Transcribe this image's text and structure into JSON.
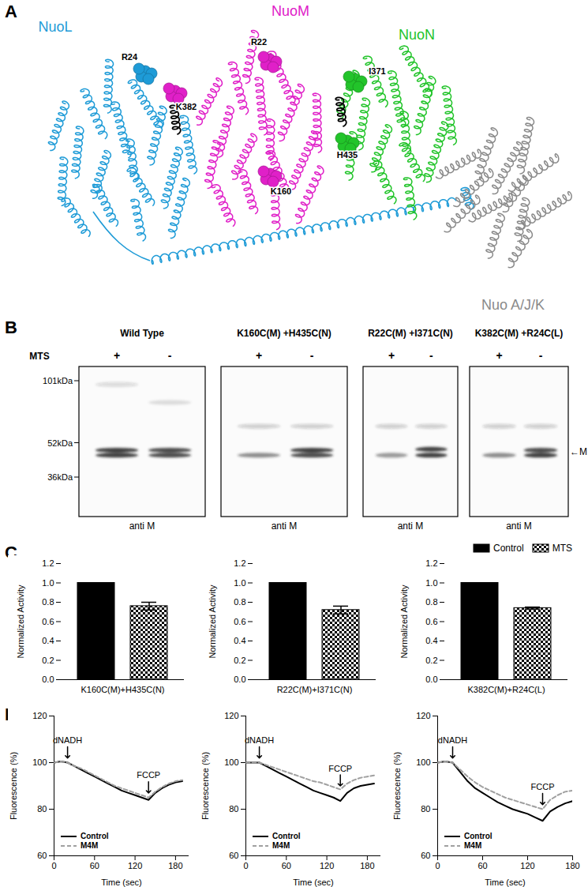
{
  "panels": {
    "A": {
      "label": "A",
      "subunits": [
        {
          "name": "NuoL",
          "color": "#1e9bd7"
        },
        {
          "name": "NuoM",
          "color": "#e020c8"
        },
        {
          "name": "NuoN",
          "color": "#22c42a"
        },
        {
          "name": "Nuo A/J/K",
          "color": "#8a8a8a"
        }
      ],
      "residues": [
        {
          "label": "R24",
          "subunit": "NuoL"
        },
        {
          "label": "K382",
          "subunit": "NuoM"
        },
        {
          "label": "R22",
          "subunit": "NuoM"
        },
        {
          "label": "I371",
          "subunit": "NuoN"
        },
        {
          "label": "H435",
          "subunit": "NuoN"
        },
        {
          "label": "K160",
          "subunit": "NuoM"
        }
      ]
    },
    "B": {
      "label": "B",
      "row_label": "MTS",
      "lanes": [
        "+",
        "-"
      ],
      "antibody": "anti M",
      "markers": [
        {
          "label": "101kDa",
          "kda": 101
        },
        {
          "label": "52kDa",
          "kda": 52
        },
        {
          "label": "36kDa",
          "kda": 36
        }
      ],
      "band_label": {
        "text": "←M",
        "kda": 47
      },
      "blots": [
        {
          "title": "Wild Type",
          "bands": [
            {
              "lane": "+",
              "kda": 48,
              "intensity": 0.85
            },
            {
              "lane": "+",
              "kda": 45.5,
              "intensity": 0.85
            },
            {
              "lane": "+",
              "kda": 97,
              "intensity": 0.15
            },
            {
              "lane": "-",
              "kda": 48,
              "intensity": 0.8
            },
            {
              "lane": "-",
              "kda": 45.5,
              "intensity": 0.8
            },
            {
              "lane": "-",
              "kda": 80,
              "intensity": 0.12
            }
          ]
        },
        {
          "title": "K160C(M) +H435C(N)",
          "bands": [
            {
              "lane": "+",
              "kda": 45.5,
              "intensity": 0.5
            },
            {
              "lane": "+",
              "kda": 62,
              "intensity": 0.2
            },
            {
              "lane": "-",
              "kda": 48,
              "intensity": 0.85
            },
            {
              "lane": "-",
              "kda": 45.5,
              "intensity": 0.8
            },
            {
              "lane": "-",
              "kda": 62,
              "intensity": 0.2
            }
          ]
        },
        {
          "title": "R22C(M) +I371C(N)",
          "bands": [
            {
              "lane": "+",
              "kda": 45.5,
              "intensity": 0.45
            },
            {
              "lane": "+",
              "kda": 62,
              "intensity": 0.2
            },
            {
              "lane": "-",
              "kda": 48.5,
              "intensity": 0.85
            },
            {
              "lane": "-",
              "kda": 45.5,
              "intensity": 0.85
            },
            {
              "lane": "-",
              "kda": 62,
              "intensity": 0.2
            }
          ]
        },
        {
          "title": "K382C(M) +R24C(L)",
          "bands": [
            {
              "lane": "+",
              "kda": 45.5,
              "intensity": 0.5
            },
            {
              "lane": "+",
              "kda": 62,
              "intensity": 0.2
            },
            {
              "lane": "-",
              "kda": 48,
              "intensity": 0.8
            },
            {
              "lane": "-",
              "kda": 45.5,
              "intensity": 0.85
            },
            {
              "lane": "-",
              "kda": 62,
              "intensity": 0.2
            }
          ]
        }
      ]
    },
    "C": {
      "label": "C"
    },
    "D": {
      "label": "D"
    }
  },
  "chart_data": [
    {
      "type": "bar",
      "y_label": "Normalized Activity",
      "categories": [
        "K160C(M)+H435C(N)"
      ],
      "series": [
        {
          "name": "Control",
          "color": "#000000",
          "values": [
            1.0
          ]
        },
        {
          "name": "MTS",
          "color": "#000000",
          "values": [
            0.76
          ],
          "errors": [
            0.04
          ]
        }
      ],
      "ylim": [
        0,
        1.2
      ],
      "yticks": [
        {
          "value": 0,
          "label": "0.0"
        },
        {
          "value": 0.2,
          "label": "0.2"
        },
        {
          "value": 0.4,
          "label": "0.4"
        },
        {
          "value": 0.6,
          "label": "0.6"
        },
        {
          "value": 0.8,
          "label": "0.8"
        },
        {
          "value": 1,
          "label": "1.0"
        },
        {
          "value": 1.2,
          "label": "1.2"
        }
      ]
    },
    {
      "type": "bar",
      "y_label": "Normalized Activity",
      "categories": [
        "R22C(M)+I371C(N)"
      ],
      "series": [
        {
          "name": "Control",
          "color": "#000000",
          "values": [
            1.0
          ]
        },
        {
          "name": "MTS",
          "color": "#000000",
          "values": [
            0.72
          ],
          "errors": [
            0.04
          ]
        }
      ],
      "ylim": [
        0,
        1.2
      ],
      "yticks": [
        {
          "value": 0,
          "label": "0.0"
        },
        {
          "value": 0.2,
          "label": "0.2"
        },
        {
          "value": 0.4,
          "label": "0.4"
        },
        {
          "value": 0.6,
          "label": "0.6"
        },
        {
          "value": 0.8,
          "label": "0.8"
        },
        {
          "value": 1,
          "label": "1.0"
        },
        {
          "value": 1.2,
          "label": "1.2"
        }
      ]
    },
    {
      "type": "bar",
      "y_label": "Normalized Activity",
      "categories": [
        "K382C(M)+R24C(L)"
      ],
      "series": [
        {
          "name": "Control",
          "color": "#000000",
          "values": [
            1.0
          ]
        },
        {
          "name": "MTS",
          "color": "#000000",
          "values": [
            0.74
          ],
          "errors": [
            0.01
          ]
        }
      ],
      "ylim": [
        0,
        1.2
      ],
      "yticks": [
        {
          "value": 0,
          "label": "0.0"
        },
        {
          "value": 0.2,
          "label": "0.2"
        },
        {
          "value": 0.4,
          "label": "0.4"
        },
        {
          "value": 0.6,
          "label": "0.6"
        },
        {
          "value": 0.8,
          "label": "0.8"
        },
        {
          "value": 1,
          "label": "1.0"
        },
        {
          "value": 1.2,
          "label": "1.2"
        }
      ],
      "legend": "top-right"
    },
    {
      "type": "line",
      "x_label": "Time (sec)",
      "y_label": "Fluorescence (%)",
      "x": [
        0,
        10,
        20,
        30,
        40,
        50,
        60,
        70,
        80,
        90,
        100,
        110,
        120,
        130,
        140,
        150,
        160,
        170,
        180,
        190
      ],
      "series": [
        {
          "name": "Control",
          "color": "#000000",
          "line_style": "solid",
          "values": [
            100,
            100.5,
            100,
            98.5,
            97,
            95.5,
            94,
            92.5,
            91,
            89.5,
            88,
            87,
            86,
            85,
            84,
            87,
            89,
            90.5,
            91.5,
            92
          ]
        },
        {
          "name": "M4M",
          "color": "#a0a0a0",
          "line_style": "dashed",
          "values": [
            100,
            100.5,
            100,
            98.5,
            97.5,
            96,
            94.5,
            93,
            91.5,
            90,
            89,
            88,
            87,
            86,
            85,
            87.5,
            89.5,
            91,
            92,
            92.5
          ]
        }
      ],
      "xlim": [
        0,
        200
      ],
      "xticks": [
        0,
        60,
        120,
        180
      ],
      "ylim": [
        60,
        120
      ],
      "yticks": [
        60,
        80,
        100,
        120
      ],
      "legend": "bottom-left",
      "annotations": [
        {
          "text": "dNADH",
          "x": 20,
          "y": 102
        },
        {
          "text": "FCCP",
          "x": 140,
          "y": 87
        }
      ]
    },
    {
      "type": "line",
      "x_label": "Time (sec)",
      "y_label": "Fluorescence (%)",
      "x": [
        0,
        10,
        20,
        30,
        40,
        50,
        60,
        70,
        80,
        90,
        100,
        110,
        120,
        130,
        140,
        150,
        160,
        170,
        180,
        190
      ],
      "series": [
        {
          "name": "Control",
          "color": "#000000",
          "line_style": "solid",
          "values": [
            100,
            100,
            100,
            98.5,
            97,
            95.5,
            94,
            92.5,
            91,
            89.5,
            88,
            87,
            86,
            85,
            83.5,
            87,
            89,
            90,
            90.5,
            91
          ]
        },
        {
          "name": "M4M",
          "color": "#a0a0a0",
          "line_style": "dashed",
          "values": [
            100,
            100,
            100,
            99,
            98,
            97,
            96,
            95,
            94,
            93,
            92,
            91.5,
            90.5,
            89.5,
            88.5,
            91,
            92.5,
            93.5,
            94,
            94.5
          ]
        }
      ],
      "xlim": [
        0,
        200
      ],
      "xticks": [
        0,
        60,
        120,
        180
      ],
      "ylim": [
        60,
        120
      ],
      "yticks": [
        60,
        80,
        100,
        120
      ],
      "legend": "bottom-left",
      "annotations": [
        {
          "text": "dNADH",
          "x": 20,
          "y": 102
        },
        {
          "text": "FCCP",
          "x": 140,
          "y": 90
        }
      ]
    },
    {
      "type": "line",
      "x_label": "Time (sec)",
      "y_label": "Fluorescence (%)",
      "x": [
        0,
        10,
        20,
        30,
        40,
        50,
        60,
        70,
        80,
        90,
        100,
        110,
        120,
        130,
        140,
        150,
        160,
        170,
        180
      ],
      "series": [
        {
          "name": "Control",
          "color": "#000000",
          "line_style": "solid",
          "values": [
            100,
            100.5,
            100,
            96,
            92,
            89,
            87,
            85,
            83,
            81.5,
            80,
            79,
            78,
            76.5,
            75,
            79,
            81,
            82.5,
            83.5
          ]
        },
        {
          "name": "M4M",
          "color": "#a0a0a0",
          "line_style": "dashed",
          "values": [
            100,
            100.5,
            100,
            97,
            94,
            91.5,
            89.5,
            88,
            86.5,
            85,
            84,
            83,
            82,
            81,
            80,
            84,
            86,
            87.5,
            88
          ]
        }
      ],
      "xlim": [
        0,
        180
      ],
      "xticks": [
        0,
        60,
        120,
        180
      ],
      "ylim": [
        60,
        120
      ],
      "yticks": [
        60,
        80,
        100,
        120
      ],
      "legend": "bottom-left",
      "annotations": [
        {
          "text": "dNADH",
          "x": 20,
          "y": 102
        },
        {
          "text": "FCCP",
          "x": 140,
          "y": 82
        }
      ]
    }
  ]
}
